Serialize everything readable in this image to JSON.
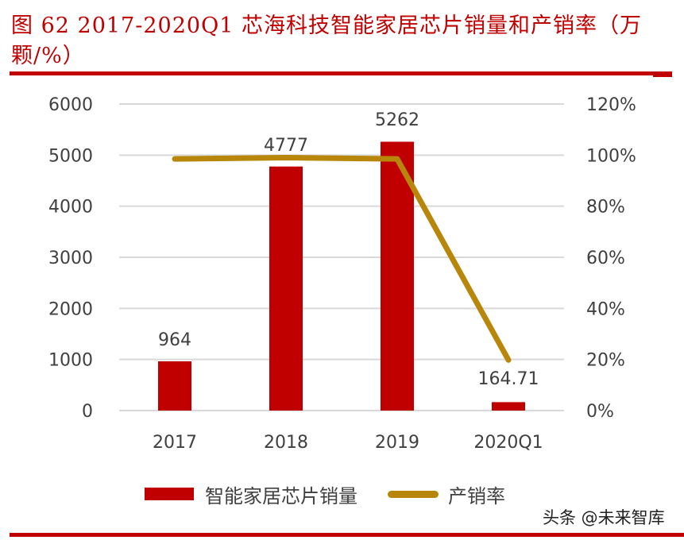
{
  "title": "图 62 2017-2020Q1 芯海科技智能家居芯片销量和产销率（万颗/%）",
  "watermark": "头条 @未来智库",
  "legend": {
    "bar_label": "智能家居芯片销量",
    "line_label": "产销率"
  },
  "colors": {
    "bar": "#c00000",
    "line": "#b8860b",
    "title": "#c00000",
    "grid": "#d9d9d9",
    "text": "#404040"
  },
  "chart_data": {
    "type": "bar+line",
    "title": "图 62 2017-2020Q1 芯海科技智能家居芯片销量和产销率（万颗/%）",
    "categories": [
      "2017",
      "2018",
      "2019",
      "2020Q1"
    ],
    "series": [
      {
        "name": "智能家居芯片销量",
        "type": "bar",
        "axis": "left",
        "values": [
          964,
          4777,
          5262,
          164.71
        ],
        "labels": [
          "964",
          "4777",
          "5262",
          "164.71"
        ]
      },
      {
        "name": "产销率",
        "type": "line",
        "axis": "right",
        "values": [
          98.5,
          99,
          98.5,
          19.8
        ]
      }
    ],
    "y_left": {
      "min": 0,
      "max": 6000,
      "ticks": [
        "0",
        "1000",
        "2000",
        "3000",
        "4000",
        "5000",
        "6000"
      ]
    },
    "y_right": {
      "min": 0,
      "max": 120,
      "ticks": [
        "0%",
        "20%",
        "40%",
        "60%",
        "80%",
        "100%",
        "120%"
      ]
    },
    "grid": true,
    "legend_position": "bottom"
  }
}
